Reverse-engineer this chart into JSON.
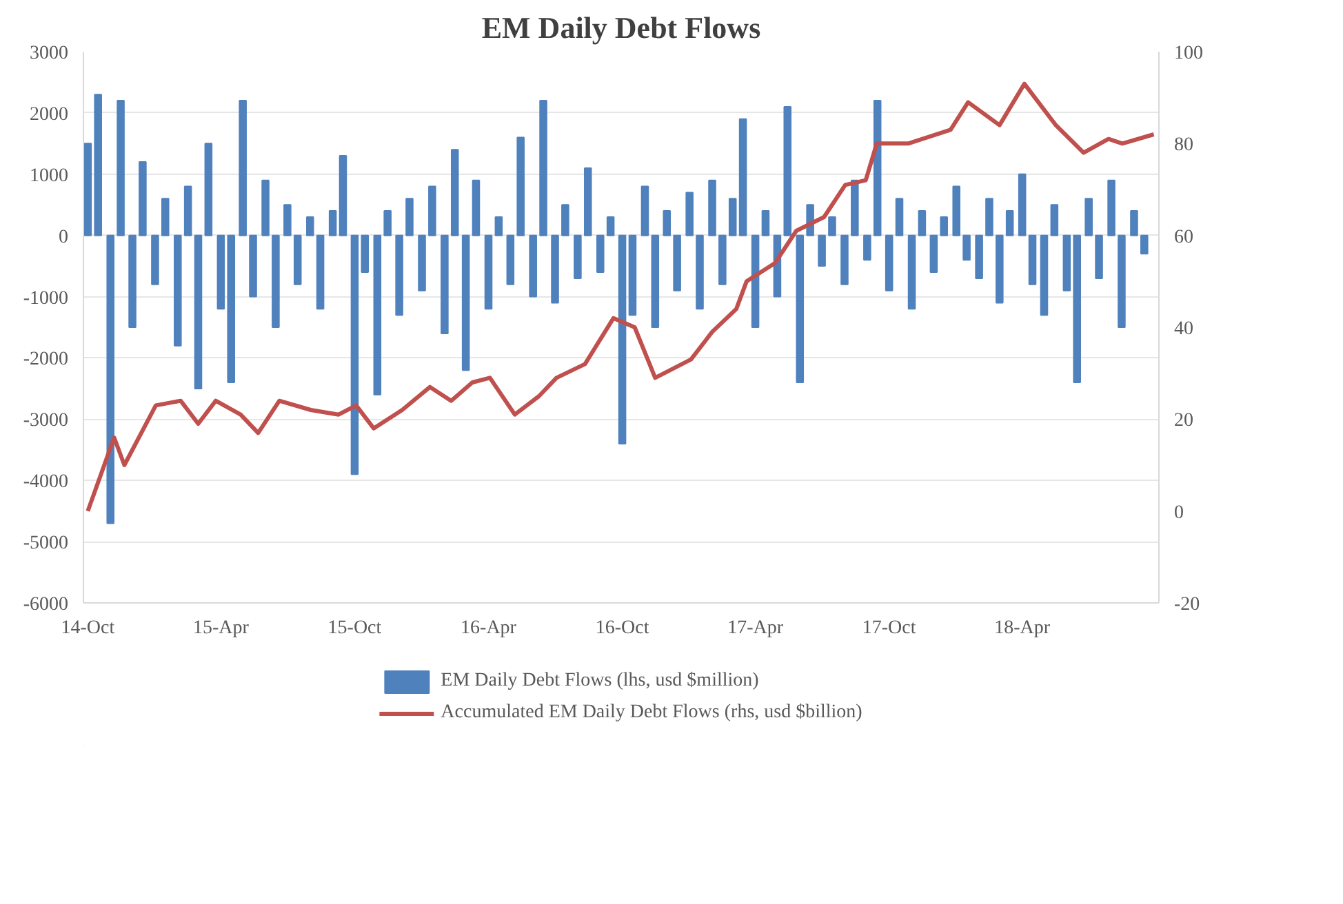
{
  "chart_data": {
    "type": "bar",
    "title": "EM Daily Debt Flows",
    "xlim": [
      "2014-09-25",
      "2018-10-05"
    ],
    "xticks": [
      {
        "value": "2014-10-01",
        "label": "14-Oct"
      },
      {
        "value": "2015-04-01",
        "label": "15-Apr"
      },
      {
        "value": "2015-10-01",
        "label": "15-Oct"
      },
      {
        "value": "2016-04-01",
        "label": "16-Apr"
      },
      {
        "value": "2016-10-01",
        "label": "16-Oct"
      },
      {
        "value": "2017-04-01",
        "label": "17-Apr"
      },
      {
        "value": "2017-10-01",
        "label": "17-Oct"
      },
      {
        "value": "2018-04-01",
        "label": "18-Apr"
      }
    ],
    "ylim": [
      -6000,
      3000
    ],
    "yticks": [
      -6000,
      -5000,
      -4000,
      -3000,
      -2000,
      -1000,
      0,
      1000,
      2000,
      3000
    ],
    "y2lim": [
      -20,
      100
    ],
    "y2ticks": [
      -20,
      0,
      20,
      40,
      60,
      80,
      100
    ],
    "grid": "y",
    "legend": "bottom",
    "series": [
      {
        "name": "EM Daily Debt Flows (lhs, usd $million)",
        "color": "#4f81bd",
        "x": [
          "2014-10-01",
          "2014-10-15",
          "2014-11-01",
          "2014-11-15",
          "2014-12-01",
          "2014-12-15",
          "2015-01-01",
          "2015-01-15",
          "2015-02-01",
          "2015-02-15",
          "2015-03-01",
          "2015-03-15",
          "2015-04-01",
          "2015-04-15",
          "2015-05-01",
          "2015-05-15",
          "2015-06-01",
          "2015-06-15",
          "2015-07-01",
          "2015-07-15",
          "2015-08-01",
          "2015-08-15",
          "2015-09-01",
          "2015-09-15",
          "2015-10-01",
          "2015-10-15",
          "2015-11-01",
          "2015-11-15",
          "2015-12-01",
          "2015-12-15",
          "2016-01-01",
          "2016-01-15",
          "2016-02-01",
          "2016-02-15",
          "2016-03-01",
          "2016-03-15",
          "2016-04-01",
          "2016-04-15",
          "2016-05-01",
          "2016-05-15",
          "2016-06-01",
          "2016-06-15",
          "2016-07-01",
          "2016-07-15",
          "2016-08-01",
          "2016-08-15",
          "2016-09-01",
          "2016-09-15",
          "2016-10-01",
          "2016-10-15",
          "2016-11-01",
          "2016-11-15",
          "2016-12-01",
          "2016-12-15",
          "2017-01-01",
          "2017-01-15",
          "2017-02-01",
          "2017-02-15",
          "2017-03-01",
          "2017-03-15",
          "2017-04-01",
          "2017-04-15",
          "2017-05-01",
          "2017-05-15",
          "2017-06-01",
          "2017-06-15",
          "2017-07-01",
          "2017-07-15",
          "2017-08-01",
          "2017-08-15",
          "2017-09-01",
          "2017-09-15",
          "2017-10-01",
          "2017-10-15",
          "2017-11-01",
          "2017-11-15",
          "2017-12-01",
          "2017-12-15",
          "2018-01-01",
          "2018-01-15",
          "2018-02-01",
          "2018-02-15",
          "2018-03-01",
          "2018-03-15",
          "2018-04-01",
          "2018-04-15",
          "2018-05-01",
          "2018-05-15",
          "2018-06-01",
          "2018-06-15",
          "2018-07-01",
          "2018-07-15",
          "2018-08-01",
          "2018-08-15",
          "2018-09-01",
          "2018-09-15"
        ],
        "values": [
          1500,
          2300,
          -4700,
          2200,
          -1500,
          1200,
          -800,
          600,
          -1800,
          800,
          -2500,
          1500,
          -1200,
          -2400,
          2200,
          -1000,
          900,
          -1500,
          500,
          -800,
          300,
          -1200,
          400,
          1300,
          -3900,
          -600,
          -2600,
          400,
          -1300,
          600,
          -900,
          800,
          -1600,
          1400,
          -2200,
          900,
          -1200,
          300,
          -800,
          1600,
          -1000,
          2200,
          -1100,
          500,
          -700,
          1100,
          -600,
          300,
          -3400,
          -1300,
          800,
          -1500,
          400,
          -900,
          700,
          -1200,
          900,
          -800,
          600,
          1900,
          -1500,
          400,
          -1000,
          2100,
          -2400,
          500,
          -500,
          300,
          -800,
          900,
          -400,
          2200,
          -900,
          600,
          -1200,
          400,
          -600,
          300,
          800,
          -400,
          -700,
          600,
          -1100,
          400,
          1000,
          -800,
          -1300,
          500,
          -900,
          -2400,
          600,
          -700,
          900,
          -1500,
          400,
          -300
        ]
      },
      {
        "name": "Accumulated EM Daily Debt Flows (rhs, usd $billion)",
        "type": "line",
        "axis": "y2",
        "color": "#c0504d",
        "x": [
          "2014-10-01",
          "2014-11-06",
          "2014-11-20",
          "2015-01-02",
          "2015-02-05",
          "2015-03-01",
          "2015-03-25",
          "2015-04-28",
          "2015-05-22",
          "2015-06-20",
          "2015-08-02",
          "2015-09-09",
          "2015-10-03",
          "2015-10-27",
          "2015-12-05",
          "2016-01-12",
          "2016-02-10",
          "2016-03-10",
          "2016-04-03",
          "2016-05-07",
          "2016-06-09",
          "2016-07-03",
          "2016-08-11",
          "2016-09-19",
          "2016-10-18",
          "2016-11-15",
          "2017-01-03",
          "2017-02-01",
          "2017-03-06",
          "2017-03-20",
          "2017-04-28",
          "2017-05-27",
          "2017-07-04",
          "2017-08-02",
          "2017-08-30",
          "2017-09-14",
          "2017-10-27",
          "2017-12-24",
          "2018-01-17",
          "2018-03-01",
          "2018-04-04",
          "2018-05-17",
          "2018-06-24",
          "2018-07-28",
          "2018-08-16",
          "2018-09-28"
        ],
        "values": [
          0,
          16,
          10,
          23,
          24,
          19,
          24,
          21,
          17,
          24,
          22,
          21,
          23,
          18,
          22,
          27,
          24,
          28,
          29,
          21,
          25,
          29,
          32,
          42,
          40,
          29,
          33,
          39,
          44,
          50,
          54,
          61,
          64,
          71,
          72,
          80,
          80,
          83,
          89,
          84,
          93,
          84,
          78,
          81,
          80,
          82
        ]
      }
    ]
  }
}
